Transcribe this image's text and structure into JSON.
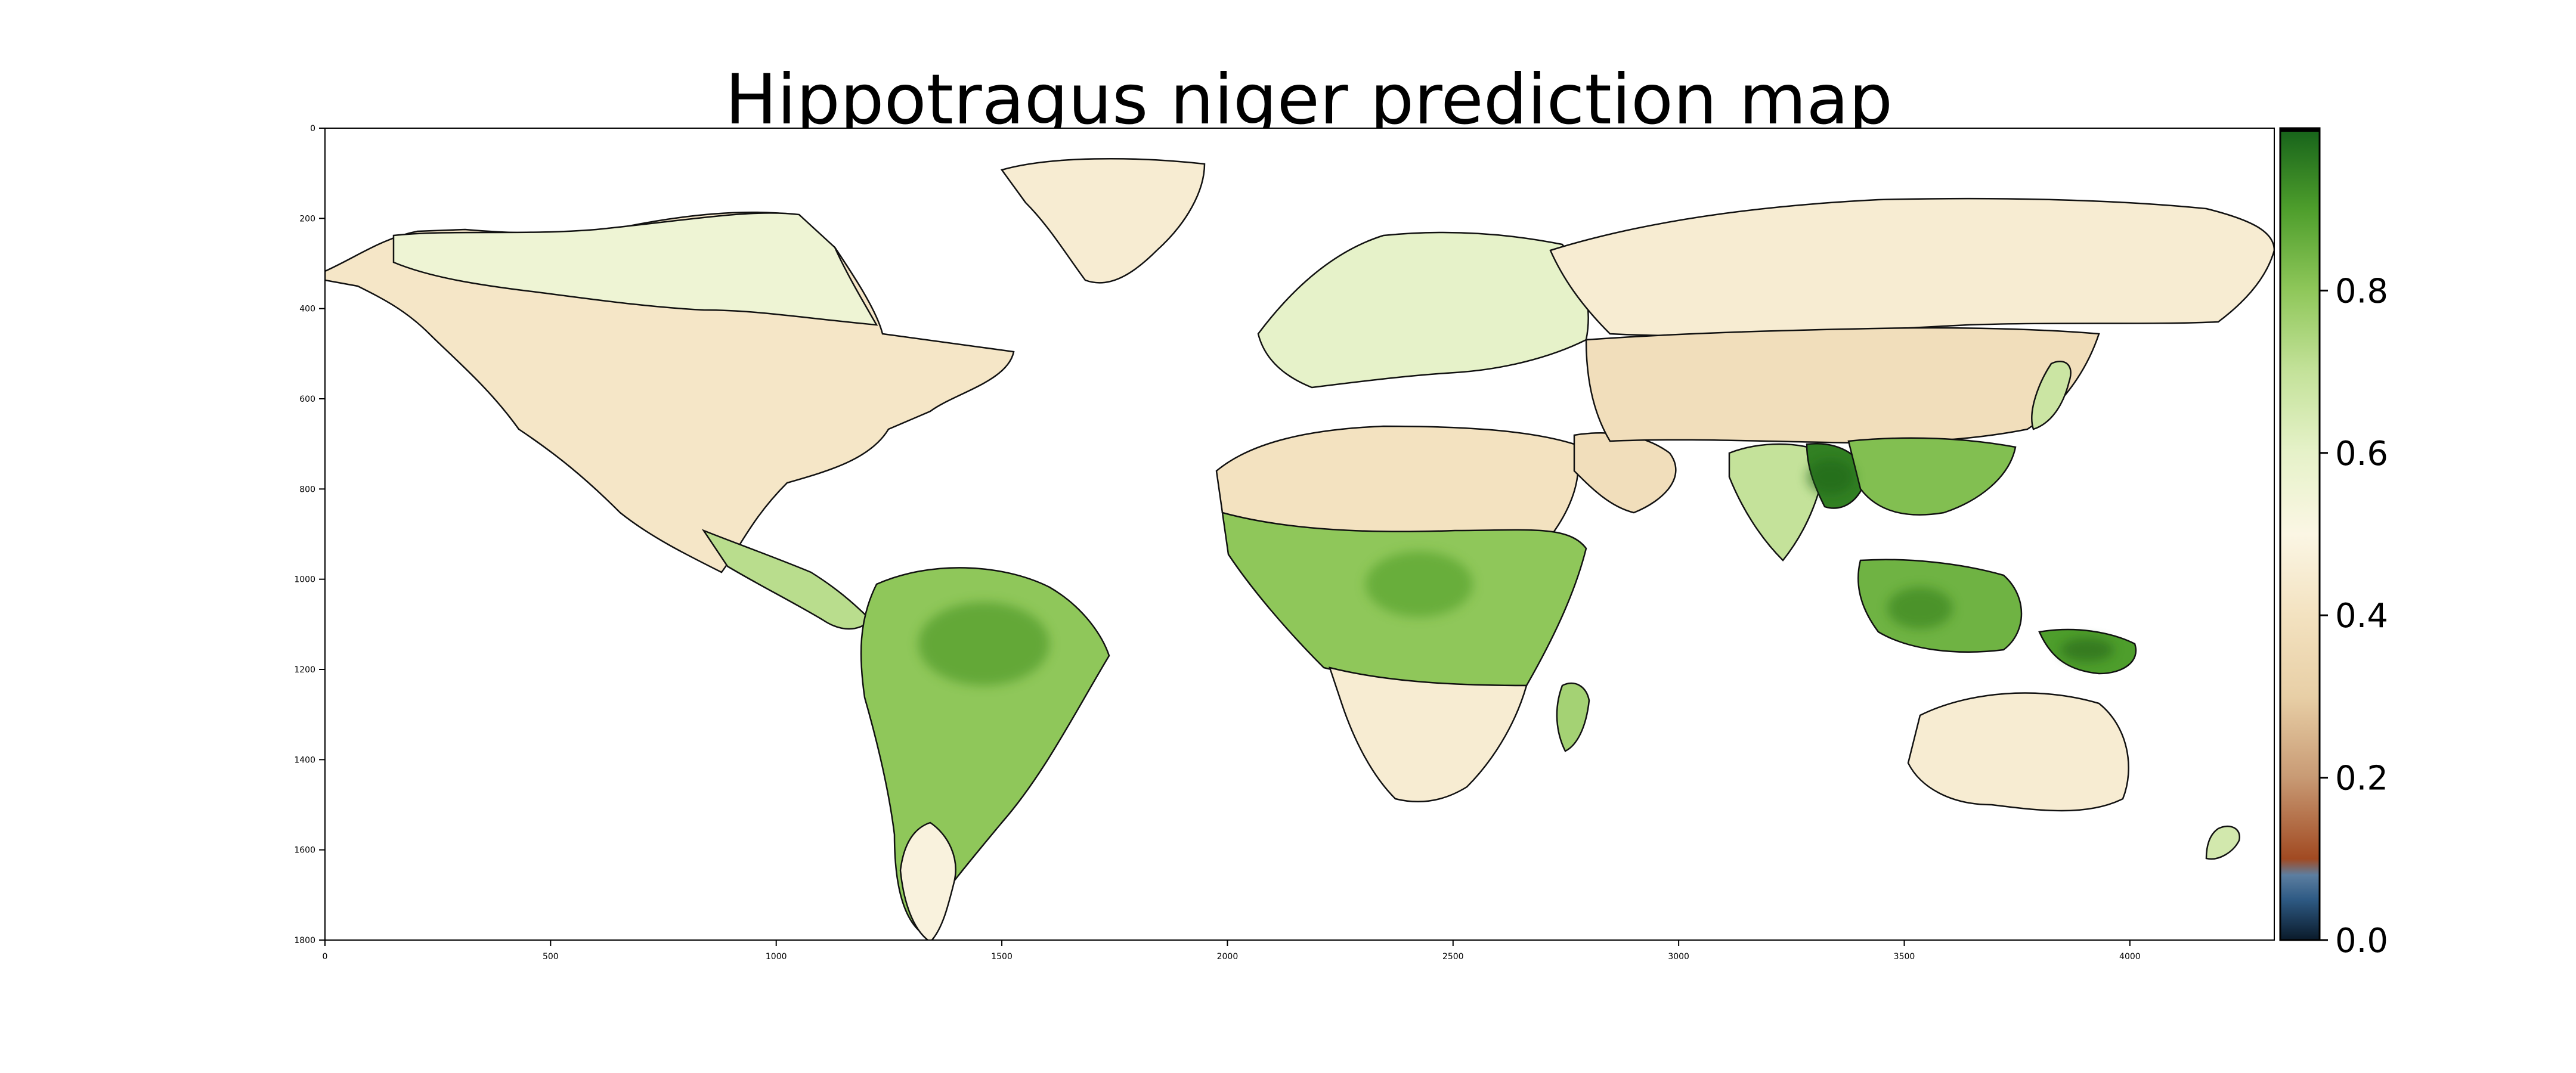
{
  "title": "Hippotragus niger prediction map",
  "chart_data": {
    "type": "heatmap",
    "title": "Hippotragus niger prediction map",
    "xlabel": "",
    "ylabel": "",
    "xlim": [
      0,
      4320
    ],
    "ylim": [
      1800,
      0
    ],
    "x_ticks": [
      "0",
      "500",
      "1000",
      "1500",
      "2000",
      "2500",
      "3000",
      "3500",
      "4000"
    ],
    "y_ticks": [
      "0",
      "200",
      "400",
      "600",
      "800",
      "1000",
      "1200",
      "1400",
      "1600",
      "1800"
    ],
    "colorbar": {
      "range": [
        0.0,
        1.0
      ],
      "ticks": [
        "0.0",
        "0.2",
        "0.4",
        "0.6",
        "0.8"
      ],
      "colormap": "diverging: black-blue at 0, brown to tan around 0.2-0.4, cream at 0.5, light to dark green toward 1.0"
    },
    "regions": [
      {
        "name": "North America",
        "level": 0.42
      },
      {
        "name": "Canada / Alaska boreal",
        "level": 0.56
      },
      {
        "name": "Central America",
        "level": 0.72
      },
      {
        "name": "South America (Amazon)",
        "level": 0.8
      },
      {
        "name": "Patagonia",
        "level": 0.48
      },
      {
        "name": "Greenland",
        "level": 0.45
      },
      {
        "name": "Europe",
        "level": 0.6
      },
      {
        "name": "North Africa / Sahara",
        "level": 0.4
      },
      {
        "name": "Arabia",
        "level": 0.38
      },
      {
        "name": "Central Africa",
        "level": 0.8
      },
      {
        "name": "Southern Africa",
        "level": 0.45
      },
      {
        "name": "Madagascar",
        "level": 0.76
      },
      {
        "name": "Northern Eurasia",
        "level": 0.45
      },
      {
        "name": "Central Asia",
        "level": 0.38
      },
      {
        "name": "India",
        "level": 0.7
      },
      {
        "name": "Bangladesh / Myanmar",
        "level": 0.95
      },
      {
        "name": "Southeast Asia",
        "level": 0.82
      },
      {
        "name": "Indonesia / Borneo",
        "level": 0.85
      },
      {
        "name": "New Guinea",
        "level": 0.9
      },
      {
        "name": "Japan",
        "level": 0.68
      },
      {
        "name": "Australia",
        "level": 0.45
      },
      {
        "name": "New Zealand",
        "level": 0.66
      }
    ]
  }
}
